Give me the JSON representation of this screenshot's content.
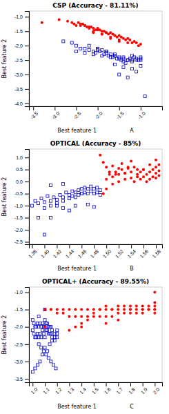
{
  "chart_data": [
    {
      "type": "scatter",
      "title": "CSP (Accuracy - 81.11%)",
      "xlabel": "Best feature 1                   A",
      "ylabel": "Best feature 2",
      "xlim": [
        -3.6,
        -0.5
      ],
      "ylim": [
        -4.1,
        -0.8
      ],
      "xticks": [
        -3.5,
        {
          "value": -3.0,
          "label": "-3.0"
        },
        -2.5,
        {
          "value": -2.0,
          "label": "-2.0"
        },
        -1.5,
        {
          "value": -1.0,
          "label": "-1.0"
        }
      ],
      "yticks": [
        {
          "value": -4.0,
          "label": "-4.0"
        },
        -3.5,
        {
          "value": -3.0,
          "label": "-3.0"
        },
        -2.5,
        {
          "value": -2.0,
          "label": "-2.0"
        },
        -1.5,
        {
          "value": -1.0,
          "label": "-1.0"
        }
      ],
      "grid": false,
      "series": [
        {
          "color": "#0000CD",
          "marker": "open-square",
          "x": [
            -2.8,
            -2.6,
            -2.5,
            -2.4,
            -2.3,
            -2.2,
            -2.1,
            -2.05,
            -2.0,
            -1.95,
            -1.9,
            -1.85,
            -1.8,
            -1.75,
            -1.7,
            -1.65,
            -1.6,
            -1.55,
            -1.5,
            -1.45,
            -1.4,
            -1.35,
            -1.3,
            -1.25,
            -1.2,
            -1.15,
            -1.1,
            -1.05,
            -1.0,
            -2.5,
            -2.3,
            -2.1,
            -1.9,
            -1.7,
            -1.5,
            -1.3,
            -1.1,
            -2.0,
            -1.8,
            -1.6,
            -1.4,
            -1.2,
            -1.0,
            -2.2,
            -2.0,
            -1.8,
            -1.6,
            -1.4,
            -1.2,
            -1.0,
            -1.6,
            -1.4,
            -1.2,
            -1.0,
            -1.5,
            -1.3,
            -1.1,
            -0.9
          ],
          "values": [
            -1.85,
            -1.9,
            -2.0,
            -2.1,
            -2.1,
            -2.15,
            -2.2,
            -2.25,
            -2.1,
            -2.2,
            -2.15,
            -2.3,
            -2.2,
            -2.35,
            -2.3,
            -2.4,
            -2.35,
            -2.45,
            -2.4,
            -2.5,
            -2.55,
            -2.6,
            -2.5,
            -2.45,
            -2.35,
            -2.4,
            -2.45,
            -2.5,
            -2.4,
            -2.2,
            -2.25,
            -2.3,
            -2.35,
            -2.4,
            -2.45,
            -2.5,
            -2.5,
            -2.1,
            -2.2,
            -2.3,
            -2.4,
            -2.5,
            -2.45,
            -2.0,
            -2.15,
            -2.25,
            -2.35,
            -2.45,
            -2.55,
            -2.5,
            -2.65,
            -2.75,
            -2.8,
            -2.7,
            -3.0,
            -3.1,
            -2.9,
            -3.75
          ]
        },
        {
          "color": "#FF0000",
          "marker": "circle",
          "x": [
            -3.3,
            -2.9,
            -2.7,
            -2.6,
            -2.55,
            -2.5,
            -2.45,
            -2.4,
            -2.35,
            -2.3,
            -2.25,
            -2.2,
            -2.15,
            -2.1,
            -2.05,
            -2.0,
            -1.95,
            -1.9,
            -1.85,
            -1.8,
            -1.75,
            -1.7,
            -1.65,
            -1.6,
            -1.55,
            -1.5,
            -1.45,
            -1.4,
            -1.35,
            -1.3,
            -1.25,
            -1.2,
            -1.15,
            -1.1,
            -1.05,
            -1.0,
            -2.3,
            -2.1,
            -1.9,
            -1.7,
            -1.5,
            -1.3,
            -2.0,
            -1.8,
            -1.6,
            -2.2,
            -1.9,
            -1.7,
            -1.5,
            -2.4,
            -2.1
          ],
          "values": [
            -1.2,
            -1.1,
            -1.15,
            -1.2,
            -1.25,
            -1.3,
            -1.2,
            -1.3,
            -1.25,
            -1.3,
            -1.35,
            -1.4,
            -1.35,
            -1.4,
            -1.45,
            -1.4,
            -1.45,
            -1.5,
            -1.5,
            -1.55,
            -1.6,
            -1.55,
            -1.6,
            -1.65,
            -1.7,
            -1.65,
            -1.7,
            -1.75,
            -1.8,
            -1.75,
            -1.8,
            -1.9,
            -1.85,
            -1.9,
            -2.0,
            -1.95,
            -1.3,
            -1.5,
            -1.6,
            -1.7,
            -1.8,
            -1.9,
            -1.45,
            -1.55,
            -1.65,
            -1.35,
            -1.6,
            -1.75,
            -1.85,
            -1.25,
            -1.55
          ]
        }
      ]
    },
    {
      "type": "scatter",
      "title": "OPTICAL (Accuracy - 85%)",
      "xlabel": "Best feature 1                   B",
      "ylabel": "Best feature 2",
      "xlim": [
        1.375,
        1.59
      ],
      "ylim": [
        -2.6,
        1.35
      ],
      "xticks": [
        1.38,
        {
          "value": 1.4,
          "label": "1.40"
        },
        1.42,
        1.44,
        1.46,
        1.48,
        {
          "value": 1.5,
          "label": "1.50"
        },
        1.52,
        1.54,
        1.56,
        1.58
      ],
      "yticks": [
        -2.5,
        {
          "value": -2.0,
          "label": "-2.0"
        },
        -1.5,
        {
          "value": -1.0,
          "label": "-1.0"
        },
        -0.5,
        {
          "value": 0.0,
          "label": "0.0"
        },
        0.5,
        {
          "value": 1.0,
          "label": "1.0"
        }
      ],
      "grid": false,
      "series": [
        {
          "color": "#0000CD",
          "marker": "open-square",
          "x": [
            1.38,
            1.385,
            1.39,
            1.395,
            1.4,
            1.4,
            1.405,
            1.41,
            1.41,
            1.415,
            1.42,
            1.42,
            1.425,
            1.43,
            1.43,
            1.435,
            1.44,
            1.44,
            1.445,
            1.445,
            1.45,
            1.45,
            1.455,
            1.455,
            1.46,
            1.46,
            1.465,
            1.465,
            1.47,
            1.47,
            1.475,
            1.475,
            1.48,
            1.48,
            1.485,
            1.485,
            1.49,
            1.49,
            1.4,
            1.41,
            1.42,
            1.43,
            1.44,
            1.45,
            1.46,
            1.47,
            1.48,
            1.39,
            1.41,
            1.43
          ],
          "values": [
            -1.0,
            -0.8,
            -0.9,
            -0.7,
            -0.85,
            -1.1,
            -0.6,
            -0.8,
            -1.0,
            -0.65,
            -0.75,
            -0.9,
            -0.55,
            -0.65,
            -0.8,
            -0.45,
            -0.55,
            -0.7,
            -0.4,
            -0.6,
            -0.45,
            -0.65,
            -0.35,
            -0.55,
            -0.3,
            -0.5,
            -0.25,
            -0.45,
            -0.3,
            -0.5,
            -0.2,
            -0.4,
            -0.5,
            -0.3,
            -0.45,
            -0.25,
            -0.55,
            -0.35,
            -2.2,
            -1.5,
            -1.0,
            -1.1,
            -1.2,
            -1.0,
            -0.5,
            -0.95,
            -1.05,
            -1.5,
            -0.15,
            -0.1
          ]
        },
        {
          "color": "#FF0000",
          "marker": "circle",
          "x": [
            1.495,
            1.5,
            1.5,
            1.505,
            1.51,
            1.51,
            1.515,
            1.52,
            1.52,
            1.525,
            1.53,
            1.53,
            1.535,
            1.54,
            1.54,
            1.545,
            1.545,
            1.55,
            1.55,
            1.555,
            1.555,
            1.56,
            1.56,
            1.565,
            1.565,
            1.57,
            1.57,
            1.575,
            1.575,
            1.58,
            1.58,
            1.58,
            1.585,
            1.585,
            1.585,
            1.49,
            1.495,
            1.5,
            1.505,
            1.51,
            1.515,
            1.52,
            1.525,
            1.53,
            1.535,
            1.54,
            1.55,
            1.56,
            1.57,
            1.58
          ],
          "values": [
            -0.5,
            -0.3,
            0.1,
            0.3,
            -0.1,
            0.2,
            0.4,
            0.0,
            0.3,
            0.5,
            0.1,
            0.35,
            0.55,
            0.15,
            0.4,
            0.0,
            0.6,
            0.2,
            0.5,
            0.1,
            0.4,
            0.2,
            0.5,
            0.0,
            0.3,
            0.1,
            0.4,
            0.2,
            0.5,
            0.15,
            0.35,
            0.6,
            0.25,
            0.45,
            0.7,
            1.1,
            0.8,
            0.6,
            0.4,
            0.65,
            0.3,
            0.55,
            0.75,
            0.35,
            0.6,
            0.85,
            0.3,
            0.5,
            0.7,
            0.9
          ]
        }
      ]
    },
    {
      "type": "scatter",
      "title": "OPTICAL+ (Accuracy - 89.55%)",
      "xlabel": "Best feature 1                   C",
      "ylabel": "Best feature 2",
      "xlim": [
        0.97,
        2.06
      ],
      "ylim": [
        -3.6,
        -0.85
      ],
      "xticks": [
        {
          "value": 1.0,
          "label": "1.0"
        },
        1.1,
        1.2,
        1.3,
        1.4,
        1.5,
        1.6,
        1.7,
        1.8,
        1.9,
        {
          "value": 2.0,
          "label": "2.0"
        }
      ],
      "yticks": [
        -3.5,
        {
          "value": -3.0,
          "label": "-3.0"
        },
        -2.5,
        {
          "value": -2.0,
          "label": "-2.0"
        },
        -1.5,
        {
          "value": -1.0,
          "label": "-1.0"
        }
      ],
      "grid": false,
      "series": [
        {
          "color": "#0000CD",
          "marker": "open-square",
          "x": [
            1.0,
            1.0,
            1.01,
            1.01,
            1.02,
            1.02,
            1.03,
            1.03,
            1.04,
            1.04,
            1.05,
            1.05,
            1.06,
            1.06,
            1.07,
            1.07,
            1.08,
            1.08,
            1.09,
            1.09,
            1.1,
            1.1,
            1.1,
            1.11,
            1.11,
            1.12,
            1.12,
            1.13,
            1.13,
            1.14,
            1.14,
            1.15,
            1.15,
            1.16,
            1.16,
            1.18,
            1.18,
            1.2,
            1.2,
            1.05,
            1.07,
            1.09,
            1.11,
            1.13,
            1.15,
            1.17,
            1.19,
            1.0,
            1.02,
            1.04,
            1.06,
            1.08,
            1.1,
            1.12,
            1.14,
            1.16,
            1.18,
            1.2,
            1.1,
            1.05
          ],
          "values": [
            -1.8,
            -2.1,
            -1.9,
            -2.2,
            -2.0,
            -2.3,
            -2.0,
            -2.3,
            -1.9,
            -2.2,
            -2.0,
            -2.3,
            -1.9,
            -2.2,
            -2.0,
            -2.3,
            -1.9,
            -2.1,
            -2.0,
            -2.2,
            -1.8,
            -2.0,
            -2.3,
            -1.9,
            -2.1,
            -1.9,
            -2.1,
            -2.0,
            -2.2,
            -2.0,
            -2.2,
            -2.0,
            -2.2,
            -2.1,
            -2.3,
            -2.2,
            -2.4,
            -2.1,
            -2.3,
            -2.5,
            -2.6,
            -2.7,
            -2.8,
            -2.9,
            -3.0,
            -3.1,
            -3.2,
            -3.3,
            -3.2,
            -3.1,
            -3.0,
            -2.8,
            -2.6,
            -2.7,
            -2.5,
            -2.4,
            -2.3,
            -2.2,
            -1.5,
            -1.7
          ]
        },
        {
          "color": "#FF0000",
          "marker": "circle",
          "x": [
            1.1,
            1.15,
            1.2,
            1.25,
            1.3,
            1.3,
            1.35,
            1.35,
            1.4,
            1.4,
            1.45,
            1.45,
            1.5,
            1.5,
            1.55,
            1.55,
            1.6,
            1.6,
            1.65,
            1.65,
            1.7,
            1.7,
            1.7,
            1.75,
            1.75,
            1.8,
            1.8,
            1.85,
            1.85,
            1.9,
            1.9,
            1.9,
            1.95,
            1.95,
            2.0,
            2.0,
            2.0,
            2.0,
            1.3,
            1.35,
            1.4,
            1.45,
            1.5,
            1.55,
            1.6,
            1.65,
            1.7,
            1.75,
            1.8,
            1.85,
            1.9,
            1.95,
            2.0,
            1.25,
            1.15,
            1.1,
            1.2,
            1.4,
            1.6,
            1.8,
            2.0
          ],
          "values": [
            -2.0,
            -1.5,
            -1.6,
            -1.6,
            -1.5,
            -1.7,
            -1.5,
            -1.7,
            -1.5,
            -1.7,
            -1.5,
            -1.7,
            -1.5,
            -1.7,
            -1.5,
            -1.7,
            -1.5,
            -1.7,
            -1.5,
            -1.7,
            -1.4,
            -1.6,
            -1.8,
            -1.4,
            -1.6,
            -1.4,
            -1.6,
            -1.4,
            -1.6,
            -1.4,
            -1.5,
            -1.6,
            -1.4,
            -1.5,
            -1.3,
            -1.4,
            -1.5,
            -1.6,
            -2.1,
            -2.0,
            -1.9,
            -1.8,
            -1.6,
            -1.5,
            -1.4,
            -1.5,
            -1.5,
            -1.5,
            -1.5,
            -1.5,
            -1.5,
            -1.5,
            -1.0,
            -1.5,
            -1.5,
            -1.5,
            -1.5,
            -2.0,
            -1.9,
            -1.5,
            -1.5
          ]
        }
      ]
    }
  ]
}
